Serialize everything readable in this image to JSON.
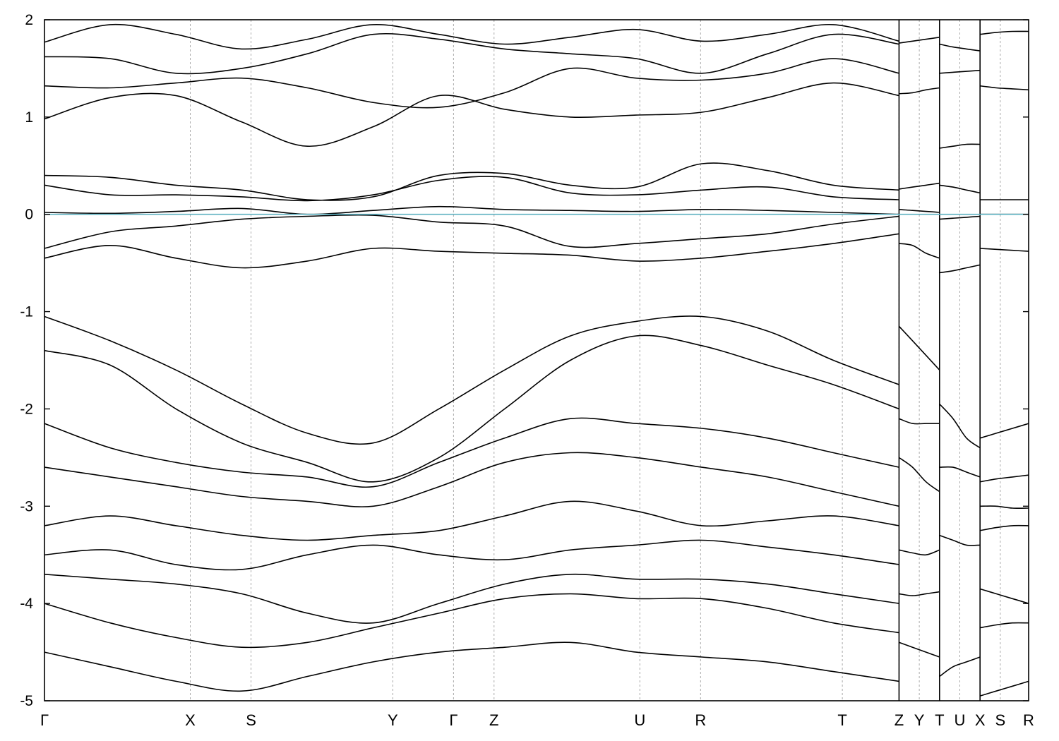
{
  "chart_data": {
    "type": "line",
    "title": "",
    "xlabel": "",
    "ylabel": "",
    "ylim": [
      -5,
      2
    ],
    "yticks": [
      -5,
      -4,
      -3,
      -2,
      -1,
      0,
      1,
      2
    ],
    "ytick_labels": [
      "-5",
      "-4",
      "-3",
      "-2",
      "-1",
      "0",
      "1",
      "2"
    ],
    "xlim": [
      0,
      24.3
    ],
    "kpoints": [
      {
        "label": "Γ",
        "x": 0
      },
      {
        "label": "X",
        "x": 3.6
      },
      {
        "label": "S",
        "x": 5.1
      },
      {
        "label": "Y",
        "x": 8.6
      },
      {
        "label": "Γ",
        "x": 10.1
      },
      {
        "label": "Z",
        "x": 11.1
      },
      {
        "label": "U",
        "x": 14.7
      },
      {
        "label": "R",
        "x": 16.2
      },
      {
        "label": "T",
        "x": 19.7
      },
      {
        "label": "Z",
        "x": 21.1
      },
      {
        "label": "Y",
        "x": 21.6
      },
      {
        "label": "T",
        "x": 22.1
      },
      {
        "label": "U",
        "x": 22.6
      },
      {
        "label": "X",
        "x": 23.1
      },
      {
        "label": "S",
        "x": 23.6
      },
      {
        "label": "R",
        "x": 24.3
      }
    ],
    "segment_breaks": [
      21.1,
      22.1,
      23.1
    ],
    "fermi_level": 0,
    "grid": "vertical dashed at high-symmetry points",
    "colors": {
      "bands": "#000000",
      "fermi": "#5fb2c2",
      "kpath": "#aaaaaa"
    },
    "series": [
      {
        "segment": 0,
        "values": [
          1.77,
          1.95,
          1.85,
          1.7,
          1.8,
          1.95,
          1.85,
          1.75,
          1.82,
          1.9,
          1.78,
          1.85,
          1.95,
          1.78
        ]
      },
      {
        "segment": 0,
        "values": [
          1.62,
          1.6,
          1.45,
          1.5,
          1.65,
          1.85,
          1.8,
          1.7,
          1.65,
          1.6,
          1.45,
          1.65,
          1.85,
          1.75
        ]
      },
      {
        "segment": 0,
        "values": [
          1.32,
          1.3,
          1.35,
          1.4,
          1.3,
          1.15,
          1.1,
          1.25,
          1.5,
          1.4,
          1.38,
          1.45,
          1.6,
          1.45
        ]
      },
      {
        "segment": 0,
        "values": [
          0.98,
          1.2,
          1.22,
          0.95,
          0.7,
          0.9,
          1.22,
          1.08,
          1.0,
          1.02,
          1.05,
          1.2,
          1.35,
          1.22
        ]
      },
      {
        "segment": 0,
        "values": [
          0.4,
          0.38,
          0.3,
          0.25,
          0.15,
          0.18,
          0.4,
          0.42,
          0.3,
          0.28,
          0.52,
          0.45,
          0.3,
          0.25
        ]
      },
      {
        "segment": 0,
        "values": [
          0.3,
          0.2,
          0.2,
          0.18,
          0.14,
          0.2,
          0.35,
          0.38,
          0.22,
          0.2,
          0.25,
          0.28,
          0.18,
          0.15
        ]
      },
      {
        "segment": 0,
        "values": [
          0.02,
          0.01,
          0.03,
          0.06,
          0.0,
          0.04,
          0.08,
          0.05,
          0.04,
          0.03,
          0.05,
          0.04,
          0.02,
          0.0
        ]
      },
      {
        "segment": 0,
        "values": [
          -0.35,
          -0.18,
          -0.12,
          -0.05,
          -0.02,
          -0.01,
          -0.08,
          -0.12,
          -0.33,
          -0.3,
          -0.25,
          -0.2,
          -0.1,
          -0.02
        ]
      },
      {
        "segment": 0,
        "values": [
          -0.45,
          -0.32,
          -0.45,
          -0.55,
          -0.48,
          -0.35,
          -0.38,
          -0.4,
          -0.42,
          -0.48,
          -0.45,
          -0.38,
          -0.3,
          -0.2
        ]
      },
      {
        "segment": 0,
        "values": [
          -1.05,
          -1.3,
          -1.6,
          -1.95,
          -2.25,
          -2.35,
          -2.0,
          -1.6,
          -1.25,
          -1.1,
          -1.05,
          -1.2,
          -1.5,
          -1.75
        ]
      },
      {
        "segment": 0,
        "values": [
          -1.4,
          -1.55,
          -2.0,
          -2.35,
          -2.55,
          -2.75,
          -2.5,
          -2.0,
          -1.5,
          -1.25,
          -1.35,
          -1.55,
          -1.75,
          -2.0
        ]
      },
      {
        "segment": 0,
        "values": [
          -2.15,
          -2.4,
          -2.55,
          -2.65,
          -2.7,
          -2.8,
          -2.55,
          -2.3,
          -2.1,
          -2.15,
          -2.2,
          -2.3,
          -2.45,
          -2.6
        ]
      },
      {
        "segment": 0,
        "values": [
          -2.6,
          -2.7,
          -2.8,
          -2.9,
          -2.95,
          -3.0,
          -2.8,
          -2.55,
          -2.45,
          -2.5,
          -2.6,
          -2.7,
          -2.85,
          -3.0
        ]
      },
      {
        "segment": 0,
        "values": [
          -3.2,
          -3.1,
          -3.2,
          -3.3,
          -3.35,
          -3.3,
          -3.25,
          -3.1,
          -2.95,
          -3.05,
          -3.2,
          -3.15,
          -3.1,
          -3.2
        ]
      },
      {
        "segment": 0,
        "values": [
          -3.5,
          -3.45,
          -3.6,
          -3.65,
          -3.5,
          -3.4,
          -3.5,
          -3.55,
          -3.45,
          -3.4,
          -3.35,
          -3.42,
          -3.5,
          -3.6
        ]
      },
      {
        "segment": 0,
        "values": [
          -3.7,
          -3.75,
          -3.8,
          -3.9,
          -4.1,
          -4.2,
          -4.0,
          -3.8,
          -3.7,
          -3.75,
          -3.75,
          -3.8,
          -3.9,
          -4.0
        ]
      },
      {
        "segment": 0,
        "values": [
          -4.0,
          -4.2,
          -4.35,
          -4.45,
          -4.4,
          -4.25,
          -4.1,
          -3.95,
          -3.9,
          -3.95,
          -3.95,
          -4.05,
          -4.2,
          -4.3
        ]
      },
      {
        "segment": 0,
        "values": [
          -4.5,
          -4.65,
          -4.8,
          -4.9,
          -4.75,
          -4.6,
          -4.5,
          -4.45,
          -4.4,
          -4.5,
          -4.55,
          -4.6,
          -4.7,
          -4.8
        ]
      },
      {
        "segment": 1,
        "values": [
          1.76,
          1.78,
          1.8,
          1.82
        ]
      },
      {
        "segment": 1,
        "values": [
          1.24,
          1.25,
          1.28,
          1.3
        ]
      },
      {
        "segment": 1,
        "values": [
          0.26,
          0.28,
          0.3,
          0.32
        ]
      },
      {
        "segment": 1,
        "values": [
          0.05,
          0.04,
          0.03,
          0.02
        ]
      },
      {
        "segment": 1,
        "values": [
          -0.3,
          -0.32,
          -0.4,
          -0.45
        ]
      },
      {
        "segment": 1,
        "values": [
          -1.15,
          -1.3,
          -1.45,
          -1.6
        ]
      },
      {
        "segment": 1,
        "values": [
          -2.1,
          -2.15,
          -2.15,
          -2.15
        ]
      },
      {
        "segment": 1,
        "values": [
          -2.5,
          -2.6,
          -2.75,
          -2.85
        ]
      },
      {
        "segment": 1,
        "values": [
          -3.45,
          -3.48,
          -3.5,
          -3.45
        ]
      },
      {
        "segment": 1,
        "values": [
          -3.9,
          -3.92,
          -3.9,
          -3.88
        ]
      },
      {
        "segment": 1,
        "values": [
          -4.4,
          -4.45,
          -4.5,
          -4.55
        ]
      },
      {
        "segment": 2,
        "values": [
          1.75,
          1.72,
          1.7,
          1.68
        ]
      },
      {
        "segment": 2,
        "values": [
          1.45,
          1.46,
          1.47,
          1.48
        ]
      },
      {
        "segment": 2,
        "values": [
          0.68,
          0.7,
          0.72,
          0.72
        ]
      },
      {
        "segment": 2,
        "values": [
          0.3,
          0.28,
          0.25,
          0.22
        ]
      },
      {
        "segment": 2,
        "values": [
          -0.05,
          -0.04,
          -0.03,
          -0.02
        ]
      },
      {
        "segment": 2,
        "values": [
          -0.6,
          -0.58,
          -0.55,
          -0.52
        ]
      },
      {
        "segment": 2,
        "values": [
          -1.95,
          -2.1,
          -2.3,
          -2.4
        ]
      },
      {
        "segment": 2,
        "values": [
          -2.6,
          -2.6,
          -2.65,
          -2.7
        ]
      },
      {
        "segment": 2,
        "values": [
          -3.3,
          -3.35,
          -3.4,
          -3.4
        ]
      },
      {
        "segment": 2,
        "values": [
          -4.75,
          -4.65,
          -4.6,
          -4.55
        ]
      },
      {
        "segment": 3,
        "values": [
          1.85,
          1.87,
          1.88,
          1.88
        ]
      },
      {
        "segment": 3,
        "values": [
          1.32,
          1.3,
          1.29,
          1.28
        ]
      },
      {
        "segment": 3,
        "values": [
          0.15,
          0.15,
          0.15,
          0.15
        ]
      },
      {
        "segment": 3,
        "values": [
          0.0,
          0.0,
          0.0,
          0.0
        ]
      },
      {
        "segment": 3,
        "values": [
          -0.35,
          -0.36,
          -0.37,
          -0.38
        ]
      },
      {
        "segment": 3,
        "values": [
          -2.3,
          -2.25,
          -2.2,
          -2.15
        ]
      },
      {
        "segment": 3,
        "values": [
          -2.75,
          -2.72,
          -2.7,
          -2.68
        ]
      },
      {
        "segment": 3,
        "values": [
          -3.0,
          -3.0,
          -3.02,
          -3.02
        ]
      },
      {
        "segment": 3,
        "values": [
          -3.25,
          -3.22,
          -3.2,
          -3.2
        ]
      },
      {
        "segment": 3,
        "values": [
          -3.85,
          -3.9,
          -3.95,
          -4.0
        ]
      },
      {
        "segment": 3,
        "values": [
          -4.25,
          -4.22,
          -4.2,
          -4.2
        ]
      },
      {
        "segment": 3,
        "values": [
          -4.95,
          -4.9,
          -4.85,
          -4.8
        ]
      }
    ]
  }
}
